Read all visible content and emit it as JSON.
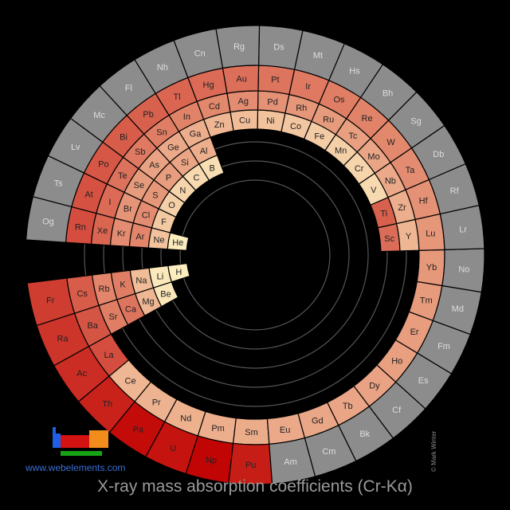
{
  "title": "X-ray mass absorption coefficients (Cr-Kα)",
  "site": "www.webelements.com",
  "credit": "© Mark Winter",
  "colors": {
    "background": "#000000",
    "guide": "#555555",
    "no_data": "#8c8c8c",
    "low": "#fdf2c3",
    "high": "#c00000",
    "logo_blue": "#1f5ee6",
    "logo_red": "#d31212",
    "logo_orange": "#f28c1c",
    "logo_green": "#16a316"
  },
  "rings": [
    {
      "name": "period-1",
      "cells": [
        {
          "symbol": "H",
          "level": 0.02
        },
        {
          "symbol": "He",
          "level": 0.03
        }
      ]
    },
    {
      "name": "period-2",
      "cells": [
        {
          "symbol": "Li",
          "level": 0.04
        },
        {
          "symbol": "Be",
          "level": 0.05
        },
        {
          "symbol": "B",
          "level": 0.08
        },
        {
          "symbol": "C",
          "level": 0.1
        },
        {
          "symbol": "N",
          "level": 0.12
        },
        {
          "symbol": "O",
          "level": 0.14
        },
        {
          "symbol": "F",
          "level": 0.17
        },
        {
          "symbol": "Ne",
          "level": 0.2
        }
      ]
    },
    {
      "name": "period-3",
      "cells": [
        {
          "symbol": "Na",
          "level": 0.22
        },
        {
          "symbol": "Mg",
          "level": 0.25
        },
        {
          "symbol": "Al",
          "level": 0.28
        },
        {
          "symbol": "Si",
          "level": 0.32
        },
        {
          "symbol": "P",
          "level": 0.35
        },
        {
          "symbol": "S",
          "level": 0.38
        },
        {
          "symbol": "Cl",
          "level": 0.42
        },
        {
          "symbol": "Ar",
          "level": 0.45
        }
      ]
    },
    {
      "name": "period-4",
      "cells": [
        {
          "symbol": "K",
          "level": 0.48
        },
        {
          "symbol": "Ca",
          "level": 0.52
        },
        {
          "symbol": "Sc",
          "level": 0.55
        },
        {
          "symbol": "Ti",
          "level": 0.6
        },
        {
          "symbol": "V",
          "level": 0.1
        },
        {
          "symbol": "Cr",
          "level": 0.12
        },
        {
          "symbol": "Mn",
          "level": 0.14
        },
        {
          "symbol": "Fe",
          "level": 0.16
        },
        {
          "symbol": "Co",
          "level": 0.18
        },
        {
          "symbol": "Ni",
          "level": 0.2
        },
        {
          "symbol": "Cu",
          "level": 0.22
        },
        {
          "symbol": "Zn",
          "level": 0.25
        },
        {
          "symbol": "Ga",
          "level": 0.28
        },
        {
          "symbol": "Ge",
          "level": 0.3
        },
        {
          "symbol": "As",
          "level": 0.33
        },
        {
          "symbol": "Se",
          "level": 0.36
        },
        {
          "symbol": "Br",
          "level": 0.39
        },
        {
          "symbol": "Kr",
          "level": 0.42
        }
      ]
    },
    {
      "name": "period-5",
      "cells": [
        {
          "symbol": "Rb",
          "level": 0.45
        },
        {
          "symbol": "Sr",
          "level": 0.48
        },
        {
          "symbol": "Y",
          "level": 0.25
        },
        {
          "symbol": "Zr",
          "level": 0.28
        },
        {
          "symbol": "Nb",
          "level": 0.3
        },
        {
          "symbol": "Mo",
          "level": 0.32
        },
        {
          "symbol": "Tc",
          "level": 0.34
        },
        {
          "symbol": "Ru",
          "level": 0.36
        },
        {
          "symbol": "Rh",
          "level": 0.38
        },
        {
          "symbol": "Pd",
          "level": 0.4
        },
        {
          "symbol": "Ag",
          "level": 0.42
        },
        {
          "symbol": "Cd",
          "level": 0.44
        },
        {
          "symbol": "In",
          "level": 0.46
        },
        {
          "symbol": "Sn",
          "level": 0.48
        },
        {
          "symbol": "Sb",
          "level": 0.5
        },
        {
          "symbol": "Te",
          "level": 0.53
        },
        {
          "symbol": "I",
          "level": 0.56
        },
        {
          "symbol": "Xe",
          "level": 0.58
        }
      ]
    },
    {
      "name": "period-6",
      "cells": [
        {
          "symbol": "Cs",
          "level": 0.62
        },
        {
          "symbol": "Ba",
          "level": 0.65
        },
        {
          "symbol": "La",
          "level": 0.68
        },
        {
          "symbol": "Ce",
          "level": 0.25
        },
        {
          "symbol": "Pr",
          "level": 0.26
        },
        {
          "symbol": "Nd",
          "level": 0.27
        },
        {
          "symbol": "Pm",
          "level": 0.28
        },
        {
          "symbol": "Sm",
          "level": 0.29
        },
        {
          "symbol": "Eu",
          "level": 0.3
        },
        {
          "symbol": "Gd",
          "level": 0.31
        },
        {
          "symbol": "Tb",
          "level": 0.32
        },
        {
          "symbol": "Dy",
          "level": 0.33
        },
        {
          "symbol": "Ho",
          "level": 0.34
        },
        {
          "symbol": "Er",
          "level": 0.35
        },
        {
          "symbol": "Tm",
          "level": 0.36
        },
        {
          "symbol": "Yb",
          "level": 0.37
        },
        {
          "symbol": "Lu",
          "level": 0.38
        },
        {
          "symbol": "Hf",
          "level": 0.4
        },
        {
          "symbol": "Ta",
          "level": 0.42
        },
        {
          "symbol": "W",
          "level": 0.44
        },
        {
          "symbol": "Re",
          "level": 0.46
        },
        {
          "symbol": "Os",
          "level": 0.48
        },
        {
          "symbol": "Ir",
          "level": 0.5
        },
        {
          "symbol": "Pt",
          "level": 0.52
        },
        {
          "symbol": "Au",
          "level": 0.54
        },
        {
          "symbol": "Hg",
          "level": 0.56
        },
        {
          "symbol": "Tl",
          "level": 0.58
        },
        {
          "symbol": "Pb",
          "level": 0.6
        },
        {
          "symbol": "Bi",
          "level": 0.62
        },
        {
          "symbol": "Po",
          "level": 0.64
        },
        {
          "symbol": "At",
          "level": 0.66
        },
        {
          "symbol": "Rn",
          "level": 0.68
        }
      ]
    },
    {
      "name": "period-7",
      "cells": [
        {
          "symbol": "Fr",
          "level": 0.75
        },
        {
          "symbol": "Ra",
          "level": 0.78
        },
        {
          "symbol": "Ac",
          "level": 0.82
        },
        {
          "symbol": "Th",
          "level": 0.86
        },
        {
          "symbol": "Pa",
          "level": 0.95
        },
        {
          "symbol": "U",
          "level": 0.92
        },
        {
          "symbol": "Np",
          "level": 0.98
        },
        {
          "symbol": "Pu",
          "level": 0.88
        },
        {
          "symbol": "Am",
          "level": null
        },
        {
          "symbol": "Cm",
          "level": null
        },
        {
          "symbol": "Bk",
          "level": null
        },
        {
          "symbol": "Cf",
          "level": null
        },
        {
          "symbol": "Es",
          "level": null
        },
        {
          "symbol": "Fm",
          "level": null
        },
        {
          "symbol": "Md",
          "level": null
        },
        {
          "symbol": "No",
          "level": null
        },
        {
          "symbol": "Lr",
          "level": null
        },
        {
          "symbol": "Rf",
          "level": null
        },
        {
          "symbol": "Db",
          "level": null
        },
        {
          "symbol": "Sg",
          "level": null
        },
        {
          "symbol": "Bh",
          "level": null
        },
        {
          "symbol": "Hs",
          "level": null
        },
        {
          "symbol": "Mt",
          "level": null
        },
        {
          "symbol": "Ds",
          "level": null
        },
        {
          "symbol": "Rg",
          "level": null
        },
        {
          "symbol": "Cn",
          "level": null
        },
        {
          "symbol": "Nh",
          "level": null
        },
        {
          "symbol": "Fl",
          "level": null
        },
        {
          "symbol": "Mc",
          "level": null
        },
        {
          "symbol": "Lv",
          "level": null
        },
        {
          "symbol": "Ts",
          "level": null
        },
        {
          "symbol": "Og",
          "level": null
        }
      ]
    }
  ]
}
